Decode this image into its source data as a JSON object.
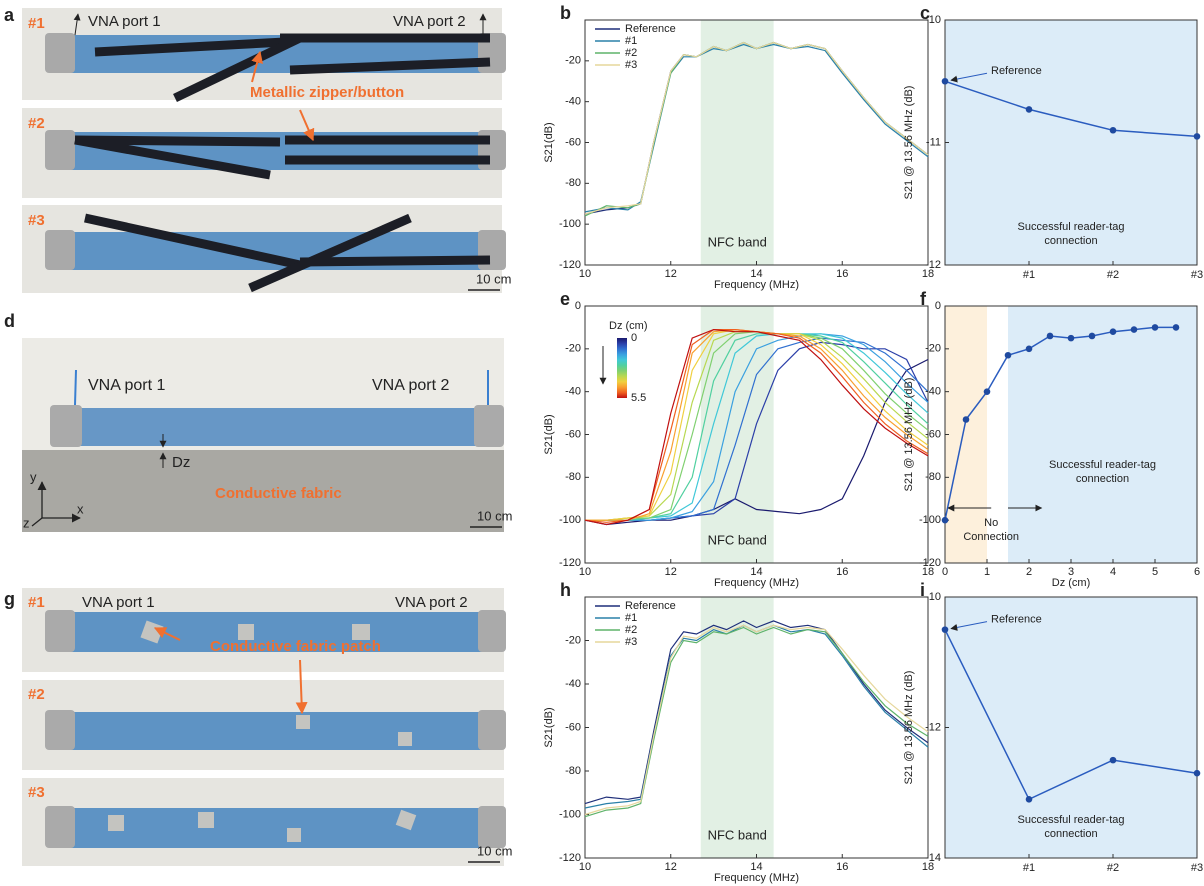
{
  "photos": {
    "a": {
      "label": "a",
      "rows": [
        "#1",
        "#2",
        "#3"
      ],
      "port1": "VNA port 1",
      "port2": "VNA port 2",
      "callout": "Metallic zipper/button",
      "scale": "10 cm"
    },
    "d": {
      "label": "d",
      "port1": "VNA port 1",
      "port2": "VNA port 2",
      "gap": "Dz",
      "callout": "Conductive fabric",
      "axes": [
        "y",
        "x",
        "z"
      ],
      "scale": "10 cm"
    },
    "g": {
      "label": "g",
      "rows": [
        "#1",
        "#2",
        "#3"
      ],
      "port1": "VNA port 1",
      "port2": "VNA port 2",
      "callout": "Conductive fabric patch",
      "scale": "10 cm"
    }
  },
  "chart_data": [
    {
      "type": "line",
      "label": "b",
      "xlabel": "Frequency (MHz)",
      "ylabel": "S21(dB)",
      "band": [
        12.7,
        14.4
      ],
      "band_label": "NFC band",
      "band_color": "#e2f0e4",
      "legend": "upper left",
      "xlim": [
        10,
        18
      ],
      "xticks": [
        10,
        12,
        14,
        16,
        18
      ],
      "ylim": [
        -120,
        0
      ],
      "yticks": [
        -120,
        -100,
        -80,
        -60,
        -40,
        -20
      ],
      "x": [
        10,
        10.5,
        11,
        11.3,
        11.6,
        12,
        12.3,
        12.6,
        13,
        13.3,
        13.7,
        14,
        14.4,
        14.8,
        15.2,
        15.6,
        16,
        16.5,
        17,
        17.5,
        18
      ],
      "series": [
        {
          "name": "Reference",
          "color": "#1f2f7a",
          "values": [
            -95,
            -93,
            -92,
            -90,
            -60,
            -25,
            -17,
            -18,
            -13,
            -15,
            -11,
            -14,
            -11,
            -14,
            -12,
            -14,
            -25,
            -38,
            -50,
            -58,
            -66
          ]
        },
        {
          "name": "#1",
          "color": "#2a80a8",
          "values": [
            -94,
            -92,
            -93,
            -89,
            -62,
            -26,
            -18,
            -18,
            -14,
            -15,
            -12,
            -14,
            -12,
            -14,
            -13,
            -15,
            -26,
            -39,
            -51,
            -59,
            -67
          ]
        },
        {
          "name": "#2",
          "color": "#5fb36a",
          "values": [
            -96,
            -91,
            -92,
            -90,
            -61,
            -26,
            -17,
            -18,
            -13,
            -15,
            -11,
            -14,
            -11,
            -14,
            -12,
            -14,
            -25,
            -38,
            -50,
            -58,
            -66
          ]
        },
        {
          "name": "#3",
          "color": "#e6d79c",
          "values": [
            -95,
            -92,
            -91,
            -90,
            -60,
            -25,
            -17,
            -18,
            -13,
            -15,
            -11,
            -14,
            -11,
            -14,
            -12,
            -14,
            -25,
            -38,
            -50,
            -58,
            -66
          ]
        }
      ]
    },
    {
      "type": "line",
      "label": "c",
      "markers": true,
      "ylabel": "S21 @ 13.56 MHz (dB)",
      "background": "#dcecf8",
      "categories": [
        null,
        "#1",
        "#2",
        "#3"
      ],
      "ylim": [
        -12,
        -10
      ],
      "yticks": [
        -12,
        -11,
        -10
      ],
      "annotation": "Reference",
      "note": [
        "Successful reader-tag",
        "connection"
      ],
      "series": [
        {
          "color": "#2a5cbf",
          "values": [
            -10.5,
            -10.73,
            -10.9,
            -10.95
          ]
        }
      ]
    },
    {
      "type": "line",
      "label": "e",
      "xlabel": "Frequency (MHz)",
      "ylabel": "S21(dB)",
      "band": [
        12.7,
        14.4
      ],
      "band_label": "NFC band",
      "band_color": "#e2f0e4",
      "xlim": [
        10,
        18
      ],
      "xticks": [
        10,
        12,
        14,
        16,
        18
      ],
      "ylim": [
        -120,
        0
      ],
      "yticks": [
        -120,
        -100,
        -80,
        -60,
        -40,
        -20,
        0
      ],
      "colorbar": {
        "label": "Dz (cm)",
        "ticks": [
          0,
          5.5
        ]
      },
      "x": [
        10,
        10.5,
        11,
        11.5,
        12,
        12.5,
        13,
        13.5,
        14,
        14.5,
        15,
        15.5,
        16,
        16.5,
        17,
        17.5,
        18
      ],
      "series": [
        {
          "color": "#1a1a6e",
          "values": [
            -100,
            -102,
            -101,
            -100,
            -100,
            -98,
            -95,
            -90,
            -95,
            -96,
            -97,
            -95,
            -90,
            -70,
            -45,
            -30,
            -25
          ]
        },
        {
          "color": "#2b3fa8",
          "values": [
            -100,
            -100,
            -100,
            -100,
            -99,
            -98,
            -97,
            -90,
            -55,
            -30,
            -20,
            -17,
            -18,
            -20,
            -20,
            -25,
            -45
          ]
        },
        {
          "color": "#3070d0",
          "values": [
            -100,
            -100,
            -100,
            -100,
            -99,
            -98,
            -95,
            -65,
            -32,
            -20,
            -17,
            -15,
            -16,
            -17,
            -22,
            -30,
            -40
          ]
        },
        {
          "color": "#3aa0e0",
          "values": [
            -100,
            -100,
            -100,
            -100,
            -99,
            -96,
            -82,
            -40,
            -20,
            -16,
            -14,
            -13,
            -14,
            -18,
            -26,
            -36,
            -45
          ]
        },
        {
          "color": "#40c8d8",
          "values": [
            -100,
            -100,
            -100,
            -99,
            -98,
            -92,
            -55,
            -22,
            -14,
            -13,
            -13,
            -13,
            -15,
            -22,
            -31,
            -41,
            -50
          ]
        },
        {
          "color": "#50d0a0",
          "values": [
            -100,
            -100,
            -100,
            -99,
            -97,
            -80,
            -35,
            -16,
            -13,
            -13,
            -13,
            -14,
            -17,
            -26,
            -36,
            -46,
            -55
          ]
        },
        {
          "color": "#80d070",
          "values": [
            -100,
            -100,
            -99,
            -99,
            -95,
            -60,
            -22,
            -13,
            -12,
            -13,
            -13,
            -15,
            -20,
            -30,
            -41,
            -50,
            -58
          ]
        },
        {
          "color": "#b8d850",
          "values": [
            -100,
            -100,
            -99,
            -98,
            -88,
            -45,
            -16,
            -12,
            -12,
            -13,
            -13,
            -16,
            -24,
            -34,
            -45,
            -54,
            -62
          ]
        },
        {
          "color": "#f0d040",
          "values": [
            -100,
            -100,
            -99,
            -98,
            -78,
            -30,
            -13,
            -11,
            -12,
            -13,
            -13,
            -18,
            -27,
            -38,
            -49,
            -58,
            -65
          ]
        },
        {
          "color": "#f8a030",
          "values": [
            -100,
            -100,
            -100,
            -97,
            -68,
            -22,
            -12,
            -11,
            -12,
            -13,
            -14,
            -20,
            -30,
            -42,
            -52,
            -60,
            -67
          ]
        },
        {
          "color": "#f06020",
          "values": [
            -100,
            -101,
            -100,
            -95,
            -58,
            -18,
            -11,
            -11,
            -12,
            -13,
            -15,
            -22,
            -33,
            -45,
            -55,
            -63,
            -69
          ]
        },
        {
          "color": "#c01010",
          "values": [
            -100,
            -102,
            -100,
            -95,
            -50,
            -15,
            -11,
            -12,
            -12,
            -14,
            -16,
            -25,
            -37,
            -48,
            -57,
            -64,
            -70
          ]
        }
      ]
    },
    {
      "type": "line",
      "label": "f",
      "markers": true,
      "xlabel": "Dz (cm)",
      "ylabel": "S21 @ 13.56 MHz (dB)",
      "regions": [
        {
          "from": 0,
          "to": 1,
          "color": "#fdf0dc"
        },
        {
          "from": 1.5,
          "to": 6,
          "color": "#dcecf8"
        }
      ],
      "xlim": [
        0,
        6
      ],
      "xticks": [
        0,
        1,
        2,
        3,
        4,
        5,
        6
      ],
      "ylim": [
        -120,
        0
      ],
      "yticks": [
        -120,
        -100,
        -80,
        -60,
        -40,
        -20,
        0
      ],
      "note": [
        "Successful reader-tag",
        "connection"
      ],
      "note2": [
        "No",
        "Connection"
      ],
      "x": [
        0,
        0.5,
        1,
        1.5,
        2,
        2.5,
        3,
        3.5,
        4,
        4.5,
        5,
        5.5
      ],
      "series": [
        {
          "color": "#2a5cbf",
          "values": [
            -100,
            -53,
            -40,
            -23,
            -20,
            -14,
            -15,
            -14,
            -12,
            -11,
            -10,
            -10
          ]
        }
      ]
    },
    {
      "type": "line",
      "label": "h",
      "xlabel": "Frequency (MHz)",
      "ylabel": "S21(dB)",
      "band": [
        12.7,
        14.4
      ],
      "band_label": "NFC band",
      "band_color": "#e2f0e4",
      "legend": "upper left",
      "xlim": [
        10,
        18
      ],
      "xticks": [
        10,
        12,
        14,
        16,
        18
      ],
      "ylim": [
        -120,
        0
      ],
      "yticks": [
        -120,
        -100,
        -80,
        -60,
        -40,
        -20
      ],
      "x": [
        10,
        10.5,
        11,
        11.3,
        11.6,
        12,
        12.3,
        12.6,
        13,
        13.3,
        13.7,
        14,
        14.4,
        14.8,
        15.2,
        15.6,
        16,
        16.5,
        17,
        17.5,
        18
      ],
      "series": [
        {
          "name": "Reference",
          "color": "#1f2f7a",
          "values": [
            -95,
            -92,
            -93,
            -92,
            -62,
            -24,
            -16,
            -17,
            -13,
            -15,
            -11,
            -14,
            -11,
            -14,
            -13,
            -15,
            -26,
            -40,
            -52,
            -60,
            -67
          ]
        },
        {
          "name": "#1",
          "color": "#2a80a8",
          "values": [
            -97,
            -95,
            -94,
            -93,
            -64,
            -27,
            -19,
            -20,
            -15,
            -17,
            -13,
            -16,
            -13,
            -16,
            -15,
            -17,
            -27,
            -41,
            -53,
            -61,
            -69
          ]
        },
        {
          "name": "#2",
          "color": "#5fb36a",
          "values": [
            -101,
            -98,
            -97,
            -95,
            -66,
            -30,
            -20,
            -21,
            -16,
            -17,
            -14,
            -17,
            -14,
            -17,
            -15,
            -16,
            -26,
            -39,
            -50,
            -58,
            -64
          ]
        },
        {
          "name": "#3",
          "color": "#e6d79c",
          "values": [
            -100,
            -97,
            -96,
            -94,
            -64,
            -28,
            -18,
            -19,
            -14,
            -16,
            -13,
            -16,
            -13,
            -15,
            -14,
            -15,
            -24,
            -36,
            -47,
            -55,
            -62
          ]
        }
      ]
    },
    {
      "type": "line",
      "label": "i",
      "markers": true,
      "ylabel": "S21 @ 13.56 MHz (dB)",
      "background": "#dcecf8",
      "categories": [
        null,
        "#1",
        "#2",
        "#3"
      ],
      "ylim": [
        -14,
        -10
      ],
      "yticks": [
        -14,
        -12,
        -10
      ],
      "annotation": "Reference",
      "note": [
        "Successful reader-tag",
        "connection"
      ],
      "series": [
        {
          "color": "#2a5cbf",
          "values": [
            -10.5,
            -13.1,
            -12.5,
            -12.7
          ]
        }
      ]
    }
  ]
}
